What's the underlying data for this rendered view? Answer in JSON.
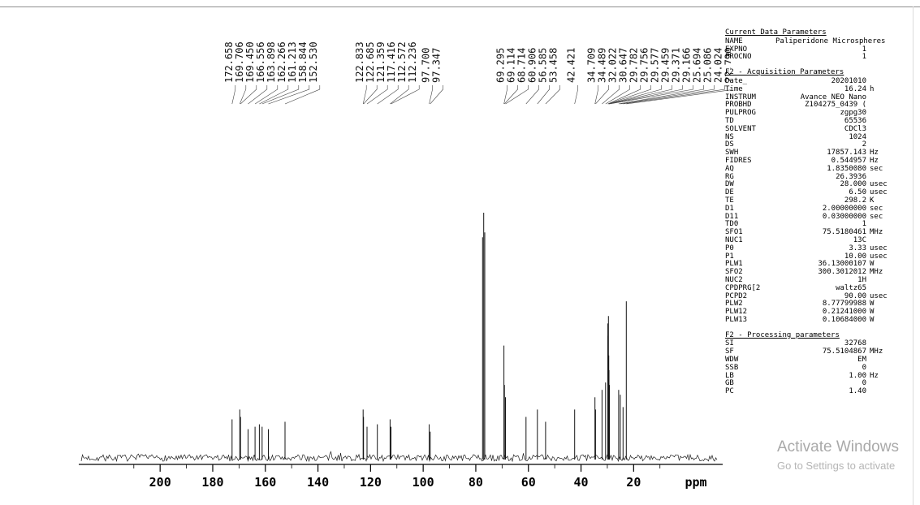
{
  "watermark": {
    "line1": "Activate Windows",
    "line2": "Go to Settings to activate"
  },
  "chart_data": {
    "type": "line",
    "title": "",
    "xlabel": "ppm",
    "x_axis_reversed": true,
    "xlim": [
      230,
      -12
    ],
    "x_ticks": [
      200,
      180,
      160,
      140,
      120,
      100,
      80,
      60,
      40,
      20
    ],
    "grid": false,
    "baseline_noise": true,
    "peaks": [
      {
        "ppm": 172.658,
        "height": 0.16,
        "labeled": true
      },
      {
        "ppm": 169.706,
        "height": 0.2,
        "labeled": true
      },
      {
        "ppm": 169.45,
        "height": 0.17,
        "labeled": true
      },
      {
        "ppm": 166.556,
        "height": 0.12,
        "labeled": true
      },
      {
        "ppm": 163.898,
        "height": 0.13,
        "labeled": true
      },
      {
        "ppm": 162.266,
        "height": 0.14,
        "labeled": true
      },
      {
        "ppm": 161.213,
        "height": 0.13,
        "labeled": true
      },
      {
        "ppm": 158.844,
        "height": 0.12,
        "labeled": true
      },
      {
        "ppm": 152.53,
        "height": 0.15,
        "labeled": true
      },
      {
        "ppm": 122.833,
        "height": 0.2,
        "labeled": true
      },
      {
        "ppm": 122.685,
        "height": 0.17,
        "labeled": true
      },
      {
        "ppm": 121.359,
        "height": 0.13,
        "labeled": true
      },
      {
        "ppm": 117.416,
        "height": 0.14,
        "labeled": true
      },
      {
        "ppm": 112.572,
        "height": 0.16,
        "labeled": true
      },
      {
        "ppm": 112.236,
        "height": 0.13,
        "labeled": true
      },
      {
        "ppm": 97.7,
        "height": 0.14,
        "labeled": true
      },
      {
        "ppm": 97.347,
        "height": 0.11,
        "labeled": true
      },
      {
        "ppm": 77.42,
        "height": 0.9,
        "labeled": false
      },
      {
        "ppm": 77.0,
        "height": 1.0,
        "labeled": false
      },
      {
        "ppm": 76.58,
        "height": 0.92,
        "labeled": false
      },
      {
        "ppm": 69.295,
        "height": 0.46,
        "labeled": true
      },
      {
        "ppm": 69.114,
        "height": 0.3,
        "labeled": true
      },
      {
        "ppm": 68.714,
        "height": 0.25,
        "labeled": true
      },
      {
        "ppm": 60.906,
        "height": 0.17,
        "labeled": true
      },
      {
        "ppm": 56.585,
        "height": 0.2,
        "labeled": true
      },
      {
        "ppm": 53.458,
        "height": 0.15,
        "labeled": true
      },
      {
        "ppm": 42.421,
        "height": 0.2,
        "labeled": true
      },
      {
        "ppm": 34.709,
        "height": 0.25,
        "labeled": true
      },
      {
        "ppm": 34.489,
        "height": 0.2,
        "labeled": true
      },
      {
        "ppm": 32.022,
        "height": 0.28,
        "labeled": true
      },
      {
        "ppm": 30.647,
        "height": 0.31,
        "labeled": true
      },
      {
        "ppm": 29.782,
        "height": 0.55,
        "labeled": true
      },
      {
        "ppm": 29.756,
        "height": 0.5,
        "labeled": true
      },
      {
        "ppm": 29.577,
        "height": 0.58,
        "labeled": true
      },
      {
        "ppm": 29.459,
        "height": 0.42,
        "labeled": true
      },
      {
        "ppm": 29.371,
        "height": 0.36,
        "labeled": true
      },
      {
        "ppm": 29.166,
        "height": 0.3,
        "labeled": true
      },
      {
        "ppm": 25.694,
        "height": 0.28,
        "labeled": true
      },
      {
        "ppm": 25.086,
        "height": 0.26,
        "labeled": true
      },
      {
        "ppm": 24.024,
        "height": 0.21,
        "labeled": true
      },
      {
        "ppm": 22.79,
        "height": 0.64,
        "labeled": true
      }
    ]
  },
  "params": {
    "sections": [
      {
        "title": "Current Data Parameters",
        "rows": [
          [
            "NAME",
            "Paliperidone Microspheres",
            ""
          ],
          [
            "EXPNO",
            "1",
            ""
          ],
          [
            "PROCNO",
            "1",
            ""
          ]
        ]
      },
      {
        "title": "F2 - Acquisition Parameters",
        "rows": [
          [
            "Date_",
            "20201010",
            ""
          ],
          [
            "Time",
            "16.24",
            "h"
          ],
          [
            "INSTRUM",
            "Avance NEO Nano",
            ""
          ],
          [
            "PROBHD",
            "Z104275_0439 (",
            ""
          ],
          [
            "PULPROG",
            "zgpg30",
            ""
          ],
          [
            "TD",
            "65536",
            ""
          ],
          [
            "SOLVENT",
            "CDCl3",
            ""
          ],
          [
            "NS",
            "1024",
            ""
          ],
          [
            "DS",
            "2",
            ""
          ],
          [
            "SWH",
            "17857.143",
            "Hz"
          ],
          [
            "FIDRES",
            "0.544957",
            "Hz"
          ],
          [
            "AQ",
            "1.8350080",
            "sec"
          ],
          [
            "RG",
            "26.3936",
            ""
          ],
          [
            "DW",
            "28.000",
            "usec"
          ],
          [
            "DE",
            "6.50",
            "usec"
          ],
          [
            "TE",
            "298.2",
            "K"
          ],
          [
            "D1",
            "2.00000000",
            "sec"
          ],
          [
            "D11",
            "0.03000000",
            "sec"
          ],
          [
            "TD0",
            "1",
            ""
          ],
          [
            "SFO1",
            "75.5180461",
            "MHz"
          ],
          [
            "NUC1",
            "13C",
            ""
          ],
          [
            "P0",
            "3.33",
            "usec"
          ],
          [
            "P1",
            "10.00",
            "usec"
          ],
          [
            "PLW1",
            "36.13000107",
            "W"
          ],
          [
            "SFO2",
            "300.3012012",
            "MHz"
          ],
          [
            "NUC2",
            "1H",
            ""
          ],
          [
            "CPDPRG[2",
            "waltz65",
            ""
          ],
          [
            "PCPD2",
            "90.00",
            "usec"
          ],
          [
            "PLW2",
            "8.77799988",
            "W"
          ],
          [
            "PLW12",
            "0.21241000",
            "W"
          ],
          [
            "PLW13",
            "0.10684000",
            "W"
          ]
        ]
      },
      {
        "title": "F2 - Processing parameters",
        "rows": [
          [
            "SI",
            "32768",
            ""
          ],
          [
            "SF",
            "75.5104867",
            "MHz"
          ],
          [
            "WDW",
            "EM",
            ""
          ],
          [
            "SSB",
            "0",
            ""
          ],
          [
            "LB",
            "1.00",
            "Hz"
          ],
          [
            "GB",
            "0",
            ""
          ],
          [
            "PC",
            "1.40",
            ""
          ]
        ]
      }
    ]
  }
}
